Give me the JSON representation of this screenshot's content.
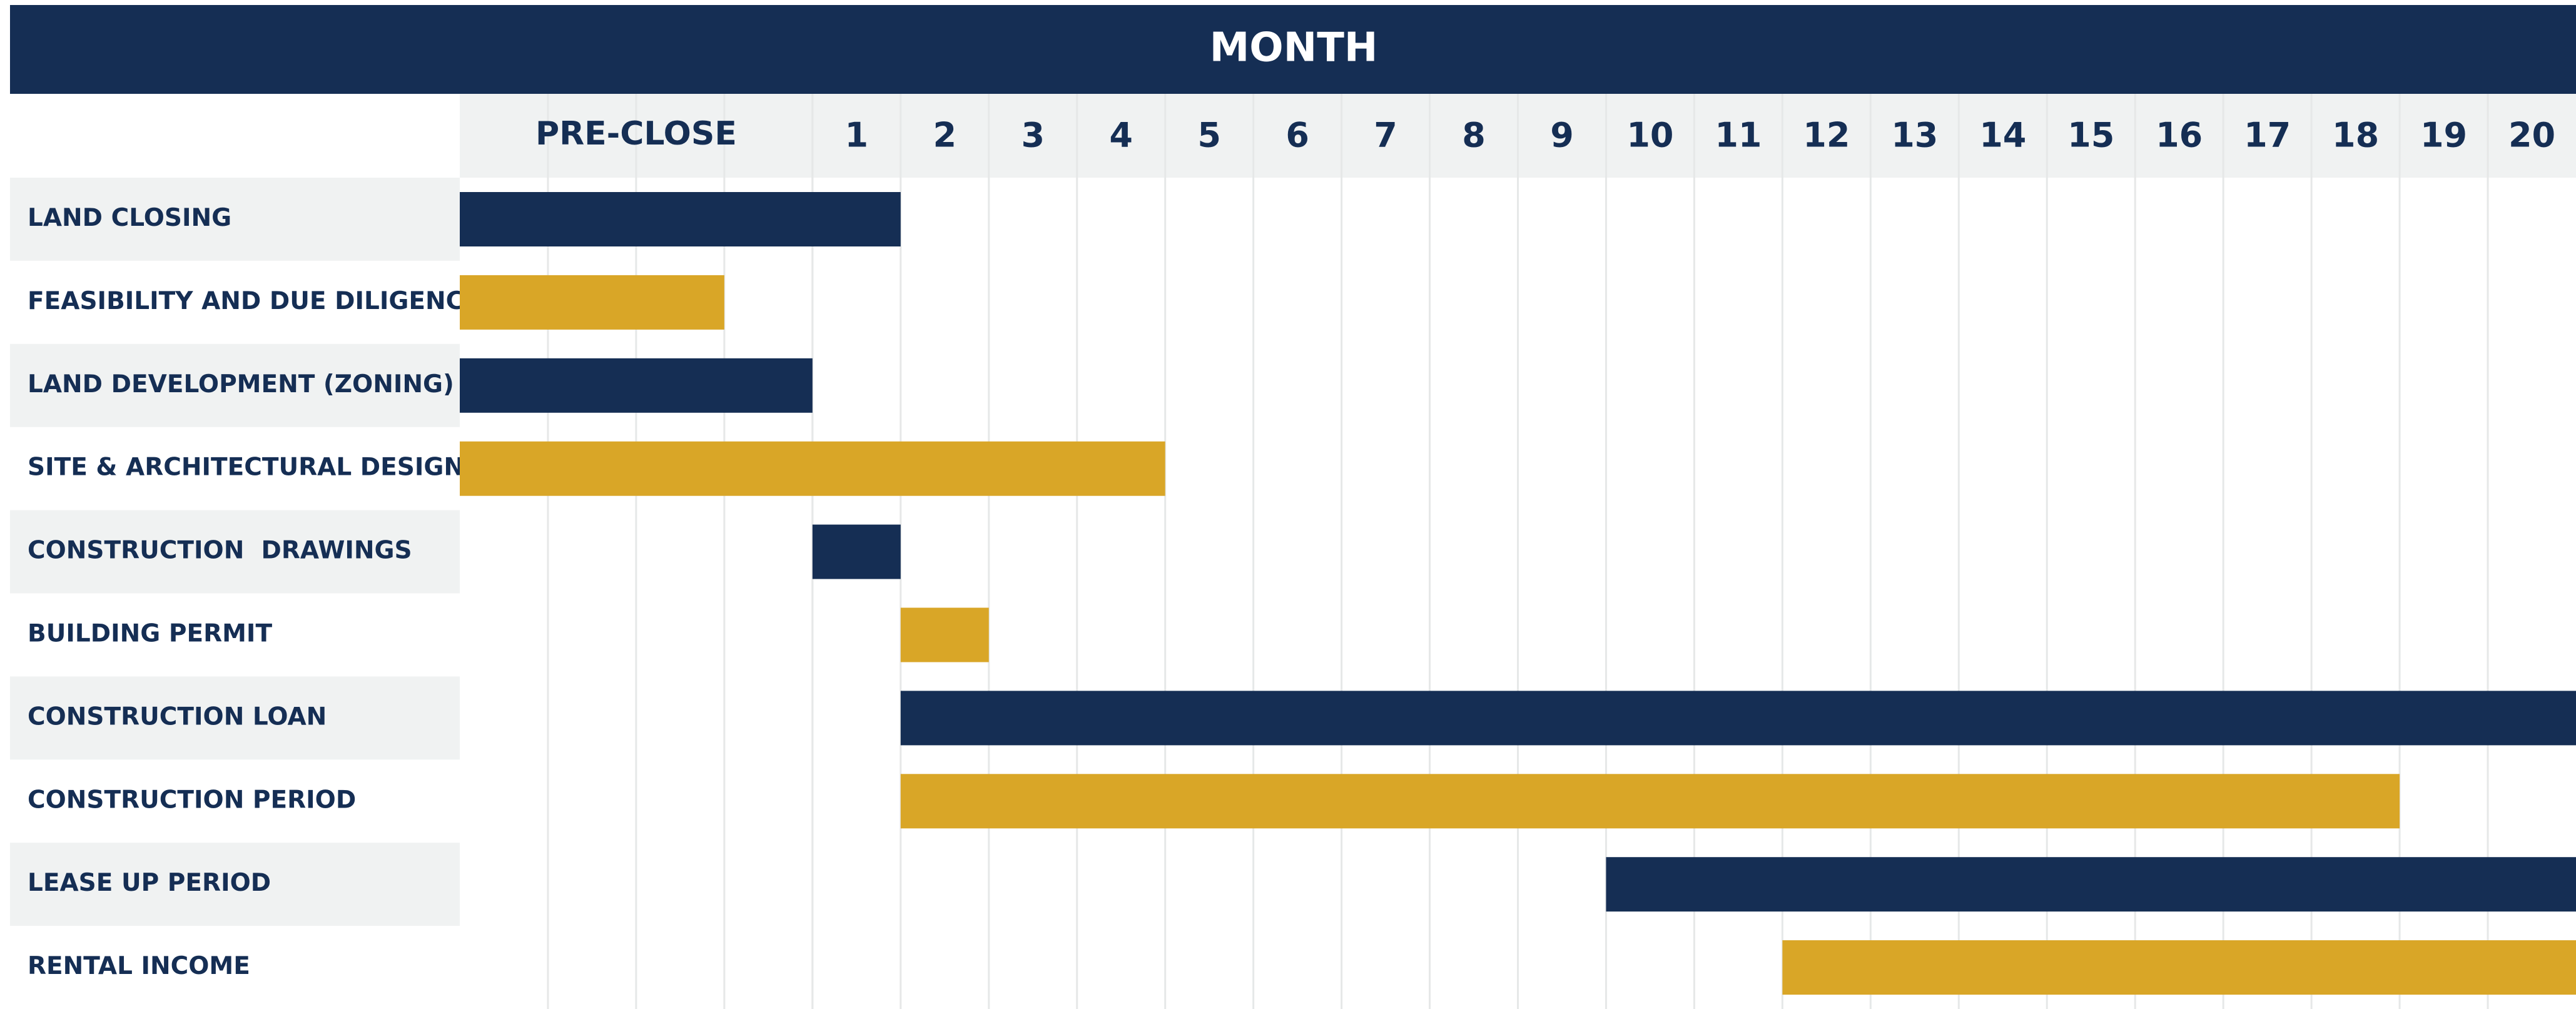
{
  "chart_data": {
    "type": "gantt",
    "title": "MONTH",
    "preclose_label": "PRE-CLOSE",
    "xlim": [
      -4,
      20
    ],
    "xticks": [
      1,
      2,
      3,
      4,
      5,
      6,
      7,
      8,
      9,
      10,
      11,
      12,
      13,
      14,
      15,
      16,
      17,
      18,
      19,
      20
    ],
    "grid": true,
    "tasks": [
      {
        "name": "LAND CLOSING",
        "start": -4,
        "end": 1,
        "color": "#152e54"
      },
      {
        "name": "FEASIBILITY AND DUE DILIGENCE",
        "start": -4,
        "end": -1,
        "color": "#d9a627"
      },
      {
        "name": "LAND DEVELOPMENT (ZONING)",
        "start": -4,
        "end": 0,
        "color": "#152e54"
      },
      {
        "name": "SITE & ARCHITECTURAL DESIGN",
        "start": -4,
        "end": 4,
        "color": "#d9a627"
      },
      {
        "name": "CONSTRUCTION  DRAWINGS",
        "start": 0,
        "end": 1,
        "color": "#152e54"
      },
      {
        "name": "BUILDING PERMIT",
        "start": 1,
        "end": 2,
        "color": "#d9a627"
      },
      {
        "name": "CONSTRUCTION LOAN",
        "start": 1,
        "end": 20,
        "color": "#152e54"
      },
      {
        "name": "CONSTRUCTION PERIOD",
        "start": 1,
        "end": 18,
        "color": "#d9a627"
      },
      {
        "name": "LEASE UP PERIOD",
        "start": 9,
        "end": 20,
        "color": "#152e54"
      },
      {
        "name": "RENTAL INCOME",
        "start": 11,
        "end": 20,
        "color": "#d9a627"
      }
    ]
  }
}
